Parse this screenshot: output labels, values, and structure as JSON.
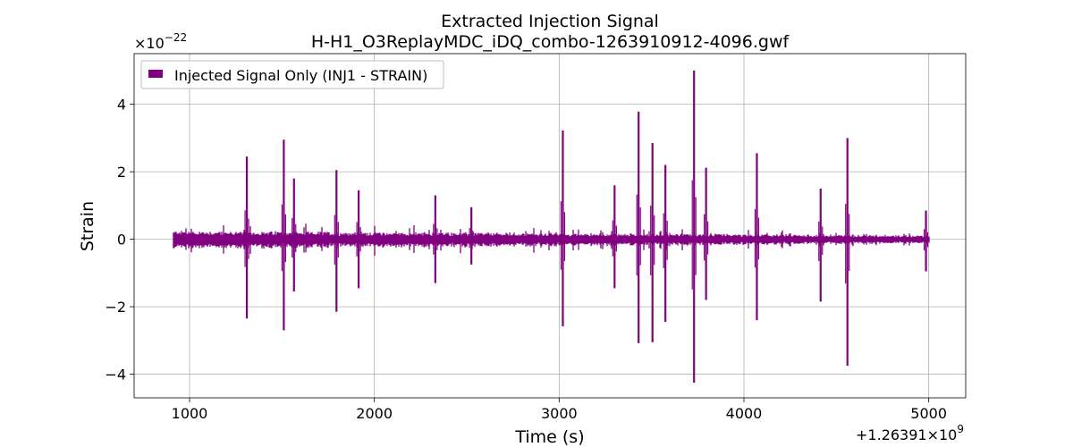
{
  "chart_data": {
    "type": "line",
    "title_line1": "Extracted Injection Signal",
    "title_line2": "H-H1_O3ReplayMDC_iDQ_combo-1263910912-4096.gwf",
    "xlabel": "Time (s)",
    "ylabel": "Strain",
    "y_scale_text": "×10",
    "y_scale_exp": "−22",
    "x_offset_text": "+1.26391×10",
    "x_offset_exp": "9",
    "xlim": [
      700,
      5200
    ],
    "ylim": [
      -4.7,
      5.5
    ],
    "x_ticks": [
      1000,
      2000,
      3000,
      4000,
      5000
    ],
    "x_tick_labels": [
      "1000",
      "2000",
      "3000",
      "4000",
      "5000"
    ],
    "y_ticks": [
      -4,
      -2,
      0,
      2,
      4
    ],
    "y_tick_labels": [
      "−4",
      "−2",
      "0",
      "2",
      "4"
    ],
    "grid": true,
    "legend_position": "top-left",
    "series": [
      {
        "name": "Injected Signal Only (INJ1 - STRAIN)",
        "color": "#800080",
        "x_range": [
          912,
          5000
        ],
        "baseline_amplitude": 0.25,
        "spikes": [
          {
            "x": 1310,
            "max": 2.45,
            "min": -2.35
          },
          {
            "x": 1510,
            "max": 2.95,
            "min": -2.7
          },
          {
            "x": 1565,
            "max": 1.8,
            "min": -1.55
          },
          {
            "x": 1795,
            "max": 2.05,
            "min": -2.15
          },
          {
            "x": 1915,
            "max": 1.45,
            "min": -1.45
          },
          {
            "x": 2330,
            "max": 1.3,
            "min": -1.3
          },
          {
            "x": 2525,
            "max": 0.95,
            "min": -0.75
          },
          {
            "x": 3020,
            "max": 3.22,
            "min": -2.58
          },
          {
            "x": 3300,
            "max": 1.6,
            "min": -1.45
          },
          {
            "x": 3430,
            "max": 3.78,
            "min": -3.08
          },
          {
            "x": 3505,
            "max": 2.85,
            "min": -3.05
          },
          {
            "x": 3575,
            "max": 2.2,
            "min": -2.45
          },
          {
            "x": 3730,
            "max": 5.0,
            "min": -4.25
          },
          {
            "x": 3795,
            "max": 2.12,
            "min": -1.8
          },
          {
            "x": 4070,
            "max": 2.55,
            "min": -2.4
          },
          {
            "x": 4415,
            "max": 1.5,
            "min": -1.85
          },
          {
            "x": 4560,
            "max": 3.0,
            "min": -3.75
          },
          {
            "x": 4985,
            "max": 0.85,
            "min": -0.95
          }
        ]
      }
    ]
  }
}
